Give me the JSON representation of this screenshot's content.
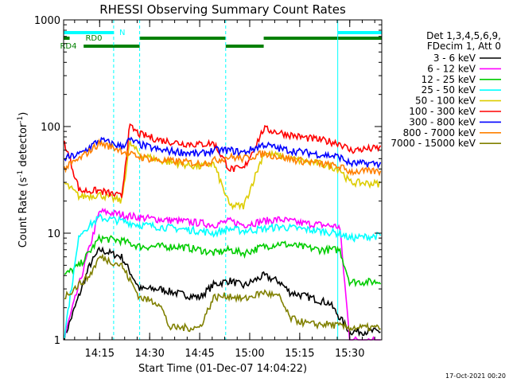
{
  "chart_data": {
    "type": "line",
    "title": "RHESSI Observing Summary Count Rates",
    "xlabel": "Start Time (01-Dec-07 14:04:22)",
    "ylabel_main": "Count Rate (s",
    "ylabel_sup1": "-1",
    "ylabel_mid": " detector",
    "ylabel_sup2": "-1",
    "ylabel_end": ")",
    "y_scale": "log",
    "ylim": [
      1,
      1000
    ],
    "xlim_minutes": [
      14.07,
      15.66
    ],
    "x_ticks": [
      {
        "value": 14.25,
        "label": "14:15"
      },
      {
        "value": 14.5,
        "label": "14:30"
      },
      {
        "value": 14.75,
        "label": "14:45"
      },
      {
        "value": 15.0,
        "label": "15:00"
      },
      {
        "value": 15.25,
        "label": "15:15"
      },
      {
        "value": 15.5,
        "label": "15:30"
      }
    ],
    "y_ticks": [
      {
        "value": 1,
        "label": "1"
      },
      {
        "value": 10,
        "label": "10"
      },
      {
        "value": 100,
        "label": "100"
      },
      {
        "value": 1000,
        "label": "1000"
      }
    ],
    "legend_header": [
      "Det 1,3,4,5,6,9,",
      "FDecim 1, Att 0"
    ],
    "legend_placement": "right",
    "series": [
      {
        "name": "3 - 6 keV",
        "color": "#000000",
        "points": [
          [
            14.07,
            1
          ],
          [
            14.2,
            5
          ],
          [
            14.25,
            7
          ],
          [
            14.36,
            6
          ],
          [
            14.45,
            3
          ],
          [
            14.55,
            3
          ],
          [
            14.65,
            2.7
          ],
          [
            14.75,
            2.5
          ],
          [
            14.82,
            3.3
          ],
          [
            14.9,
            3.6
          ],
          [
            14.97,
            3.2
          ],
          [
            15.07,
            4
          ],
          [
            15.15,
            3.5
          ],
          [
            15.2,
            2.8
          ],
          [
            15.3,
            2.5
          ],
          [
            15.4,
            2.2
          ],
          [
            15.5,
            1.2
          ],
          [
            15.66,
            1.2
          ]
        ]
      },
      {
        "name": "6 - 12 keV",
        "color": "#ff00ff",
        "points": [
          [
            14.07,
            1
          ],
          [
            14.25,
            16
          ],
          [
            14.36,
            15
          ],
          [
            14.45,
            14
          ],
          [
            14.55,
            13.5
          ],
          [
            14.65,
            13
          ],
          [
            14.75,
            12.5
          ],
          [
            14.82,
            12
          ],
          [
            14.9,
            13
          ],
          [
            14.97,
            12
          ],
          [
            15.07,
            13
          ],
          [
            15.15,
            13.5
          ],
          [
            15.25,
            12.5
          ],
          [
            15.35,
            12
          ],
          [
            15.45,
            11.5
          ],
          [
            15.5,
            1
          ],
          [
            15.66,
            1
          ]
        ]
      },
      {
        "name": "12 - 25 keV",
        "color": "#00cc00",
        "points": [
          [
            14.07,
            4
          ],
          [
            14.15,
            5
          ],
          [
            14.25,
            9
          ],
          [
            14.36,
            8.5
          ],
          [
            14.45,
            7.5
          ],
          [
            14.55,
            7.5
          ],
          [
            14.65,
            7.5
          ],
          [
            14.75,
            7
          ],
          [
            14.82,
            6.5
          ],
          [
            14.9,
            7
          ],
          [
            14.97,
            6.5
          ],
          [
            15.07,
            7.5
          ],
          [
            15.15,
            8
          ],
          [
            15.25,
            7.5
          ],
          [
            15.35,
            7
          ],
          [
            15.45,
            7
          ],
          [
            15.5,
            3.5
          ],
          [
            15.66,
            3.5
          ]
        ]
      },
      {
        "name": "25 - 50 keV",
        "color": "#00ffff",
        "points": [
          [
            14.07,
            1
          ],
          [
            14.15,
            10
          ],
          [
            14.25,
            14
          ],
          [
            14.36,
            13
          ],
          [
            14.45,
            12
          ],
          [
            14.55,
            11.5
          ],
          [
            14.65,
            11
          ],
          [
            14.75,
            10.5
          ],
          [
            14.82,
            10
          ],
          [
            14.9,
            11
          ],
          [
            14.97,
            10.5
          ],
          [
            15.07,
            11
          ],
          [
            15.15,
            11.5
          ],
          [
            15.25,
            11
          ],
          [
            15.35,
            10.5
          ],
          [
            15.45,
            10
          ],
          [
            15.5,
            9
          ],
          [
            15.66,
            9.5
          ]
        ]
      },
      {
        "name": "50 - 100 keV",
        "color": "#ddcc00",
        "points": [
          [
            14.07,
            30
          ],
          [
            14.15,
            22
          ],
          [
            14.25,
            23
          ],
          [
            14.36,
            20
          ],
          [
            14.4,
            70
          ],
          [
            14.45,
            55
          ],
          [
            14.55,
            48
          ],
          [
            14.65,
            45
          ],
          [
            14.75,
            42
          ],
          [
            14.82,
            45
          ],
          [
            14.9,
            18
          ],
          [
            14.97,
            18
          ],
          [
            15.07,
            56
          ],
          [
            15.15,
            53
          ],
          [
            15.25,
            48
          ],
          [
            15.35,
            45
          ],
          [
            15.45,
            40
          ],
          [
            15.5,
            30
          ],
          [
            15.66,
            29
          ]
        ]
      },
      {
        "name": "100 - 300 keV",
        "color": "#ff0000",
        "points": [
          [
            14.07,
            75
          ],
          [
            14.15,
            25
          ],
          [
            14.25,
            25
          ],
          [
            14.36,
            22
          ],
          [
            14.4,
            100
          ],
          [
            14.45,
            85
          ],
          [
            14.55,
            75
          ],
          [
            14.65,
            70
          ],
          [
            14.75,
            68
          ],
          [
            14.82,
            70
          ],
          [
            14.9,
            40
          ],
          [
            14.97,
            40
          ],
          [
            15.07,
            95
          ],
          [
            15.15,
            88
          ],
          [
            15.25,
            80
          ],
          [
            15.35,
            75
          ],
          [
            15.45,
            70
          ],
          [
            15.5,
            60
          ],
          [
            15.66,
            63
          ]
        ]
      },
      {
        "name": "300 - 800 keV",
        "color": "#0000ff",
        "points": [
          [
            14.07,
            50
          ],
          [
            14.15,
            55
          ],
          [
            14.25,
            75
          ],
          [
            14.36,
            65
          ],
          [
            14.4,
            75
          ],
          [
            14.45,
            68
          ],
          [
            14.55,
            60
          ],
          [
            14.65,
            58
          ],
          [
            14.75,
            55
          ],
          [
            14.82,
            60
          ],
          [
            14.9,
            60
          ],
          [
            14.97,
            57
          ],
          [
            15.07,
            68
          ],
          [
            15.15,
            62
          ],
          [
            15.25,
            58
          ],
          [
            15.35,
            55
          ],
          [
            15.45,
            52
          ],
          [
            15.5,
            45
          ],
          [
            15.66,
            45
          ]
        ]
      },
      {
        "name": "800 - 7000 keV",
        "color": "#ff8000",
        "points": [
          [
            14.07,
            40
          ],
          [
            14.15,
            50
          ],
          [
            14.25,
            70
          ],
          [
            14.36,
            60
          ],
          [
            14.4,
            55
          ],
          [
            14.45,
            52
          ],
          [
            14.55,
            48
          ],
          [
            14.65,
            47
          ],
          [
            14.75,
            45
          ],
          [
            14.82,
            48
          ],
          [
            14.9,
            52
          ],
          [
            14.97,
            50
          ],
          [
            15.07,
            56
          ],
          [
            15.15,
            52
          ],
          [
            15.25,
            48
          ],
          [
            15.35,
            45
          ],
          [
            15.45,
            42
          ],
          [
            15.5,
            38
          ],
          [
            15.66,
            38
          ]
        ]
      },
      {
        "name": "7000 - 15000 keV",
        "color": "#808000",
        "points": [
          [
            14.07,
            2.5
          ],
          [
            14.2,
            4
          ],
          [
            14.25,
            6
          ],
          [
            14.36,
            5
          ],
          [
            14.45,
            2.5
          ],
          [
            14.55,
            2.2
          ],
          [
            14.6,
            1.3
          ],
          [
            14.75,
            1.3
          ],
          [
            14.82,
            2.5
          ],
          [
            14.9,
            2.6
          ],
          [
            14.97,
            2.4
          ],
          [
            15.07,
            2.8
          ],
          [
            15.15,
            2.5
          ],
          [
            15.2,
            1.6
          ],
          [
            15.3,
            1.4
          ],
          [
            15.4,
            1.4
          ],
          [
            15.5,
            1.3
          ],
          [
            15.66,
            1.3
          ]
        ]
      }
    ],
    "state_bars": [
      {
        "label": "N",
        "color": "#00ffff",
        "segments": [
          [
            14.07,
            14.32
          ],
          [
            15.44,
            15.66
          ]
        ]
      },
      {
        "label": "RD0",
        "color": "#008000",
        "segments": [
          [
            14.07,
            14.1
          ],
          [
            14.45,
            14.88
          ],
          [
            15.07,
            15.66
          ]
        ]
      },
      {
        "label": "RD4",
        "color": "#008000",
        "segments": [
          [
            14.17,
            14.45
          ],
          [
            14.88,
            15.07
          ]
        ]
      }
    ],
    "vertical_lines": [
      {
        "x": 14.07,
        "color": "#00ffff",
        "style": "solid"
      },
      {
        "x": 14.32,
        "color": "#00ffff",
        "style": "dashed"
      },
      {
        "x": 14.45,
        "color": "#00ffff",
        "style": "dashed"
      },
      {
        "x": 14.88,
        "color": "#00ffff",
        "style": "dashed"
      },
      {
        "x": 15.44,
        "color": "#00ffff",
        "style": "solid"
      },
      {
        "x": 15.66,
        "color": "#00ffff",
        "style": "dashed"
      }
    ]
  },
  "footer_timestamp": "17-Oct-2021 00:20"
}
